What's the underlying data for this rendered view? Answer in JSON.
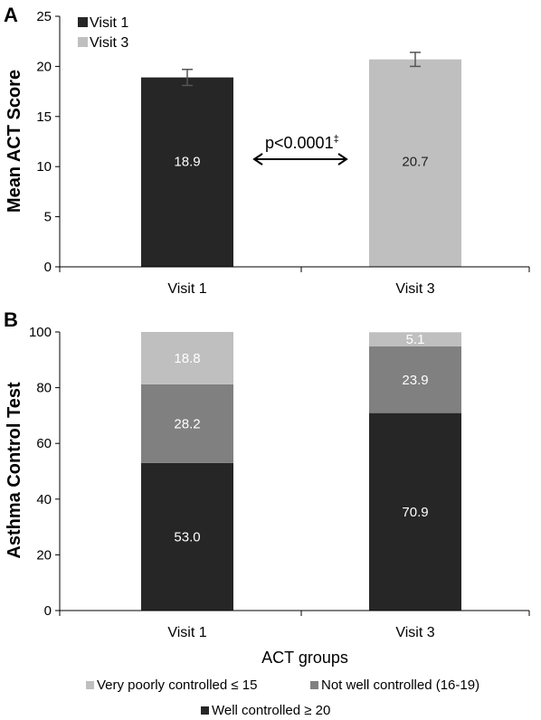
{
  "colors": {
    "visit1": "#262626",
    "visit3": "#bfbfbf",
    "very_poor": "#bfbfbf",
    "not_well": "#808080",
    "well": "#262626",
    "axis": "#000000",
    "error_bar": "#555555"
  },
  "chart_data": [
    {
      "panel": "A",
      "type": "bar",
      "categories": [
        "Visit 1",
        "Visit 3"
      ],
      "values": [
        18.9,
        20.7
      ],
      "error": [
        0.8,
        0.7
      ],
      "value_labels": [
        "18.9",
        "20.7"
      ],
      "ylabel": "Mean ACT Score",
      "ylim": [
        0,
        25
      ],
      "yticks": [
        "0",
        "5",
        "10",
        "15",
        "20",
        "25"
      ],
      "legend": {
        "placement": "top-left",
        "entries": [
          "Visit 1",
          "Visit 3"
        ]
      },
      "annotation": {
        "text": "p<0.0001",
        "superscript": "‡"
      },
      "grid": false
    },
    {
      "panel": "B",
      "type": "bar",
      "stacked": true,
      "categories": [
        "Visit 1",
        "Visit 3"
      ],
      "series": [
        {
          "name": "Well controlled ≥ 20",
          "values": [
            53.0,
            70.9
          ],
          "labels": [
            "53.0",
            "70.9"
          ]
        },
        {
          "name": "Not well controlled (16-19)",
          "values": [
            28.2,
            23.9
          ],
          "labels": [
            "28.2",
            "23.9"
          ]
        },
        {
          "name": "Very poorly controlled ≤ 15",
          "values": [
            18.8,
            5.1
          ],
          "labels": [
            "18.8",
            "5.1"
          ]
        }
      ],
      "ylabel": "Asthma Control Test",
      "xlabel": "ACT groups",
      "ylim": [
        0,
        100
      ],
      "yticks": [
        "0",
        "20",
        "40",
        "60",
        "80",
        "100"
      ],
      "legend": {
        "placement": "bottom",
        "row1": [
          "Very poorly controlled ≤ 15",
          "Not well controlled (16-19)"
        ],
        "row2": [
          "Well controlled ≥ 20"
        ]
      },
      "grid": false
    }
  ]
}
